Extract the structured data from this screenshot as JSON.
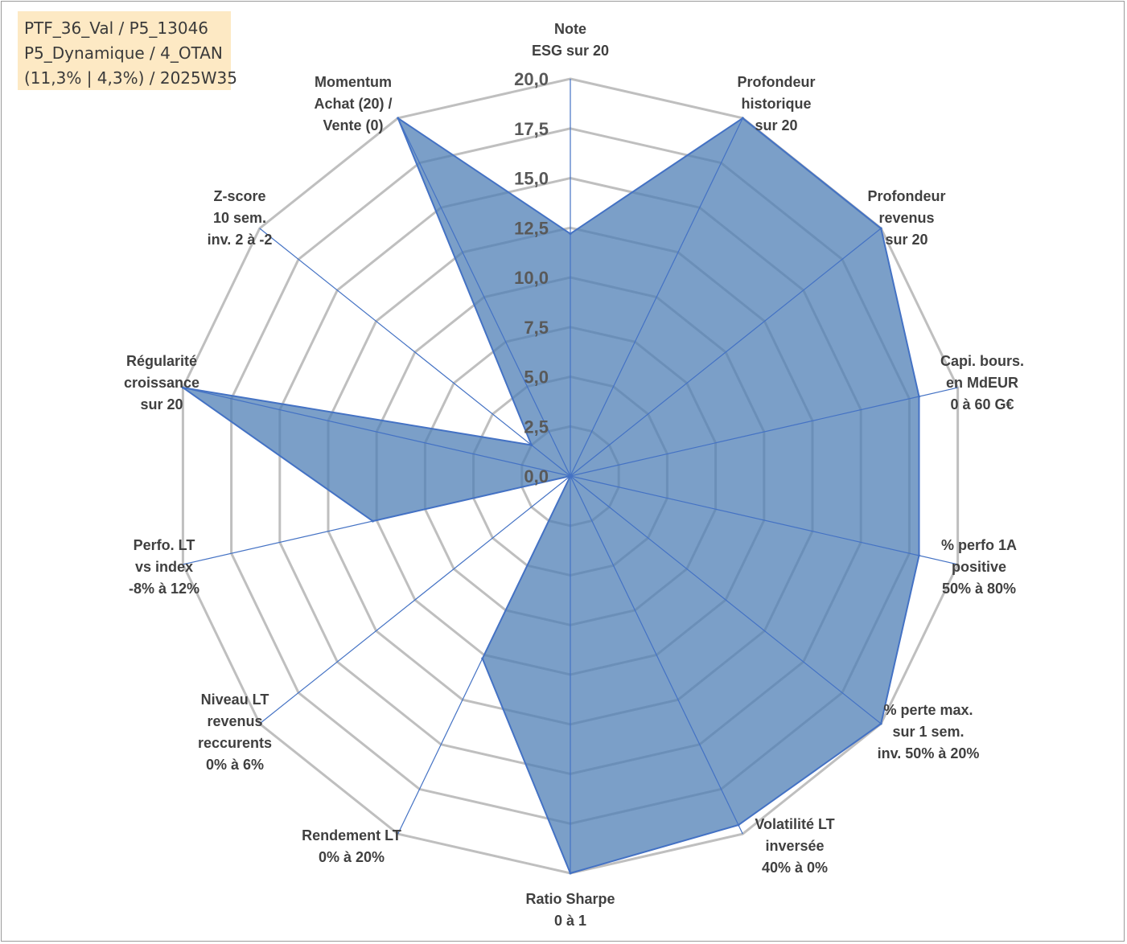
{
  "info_box": {
    "line1": "PTF_36_Val / P5_13046",
    "line2": "P5_Dynamique / 4_OTAN",
    "line3": "(11,3% | 4,3%) / 2025W35"
  },
  "chart_data": {
    "type": "radar",
    "rmin": 0,
    "rmax": 20,
    "ticks": [
      "0,0",
      "2,5",
      "5,0",
      "7,5",
      "10,0",
      "12,5",
      "15,0",
      "17,5",
      "20,0"
    ],
    "axes": [
      [
        "Note",
        "ESG sur 20"
      ],
      [
        "Profondeur",
        "historique",
        "sur 20"
      ],
      [
        "Profondeur",
        "revenus",
        "sur 20"
      ],
      [
        "Capi. bours.",
        "en MdEUR",
        "0 à 60 G€"
      ],
      [
        "% perfo 1A",
        "positive",
        "50% à 80%"
      ],
      [
        "% perte max.",
        "sur 1 sem.",
        "inv. 50% à 20%"
      ],
      [
        "Volatilité LT",
        "inversée",
        "40% à 0%"
      ],
      [
        "Ratio Sharpe",
        "0 à 1"
      ],
      [
        "Rendement LT",
        "0% à 20%"
      ],
      [
        "Niveau LT",
        "revenus",
        "reccurents",
        "0% à 6%"
      ],
      [
        "Perfo. LT",
        "vs index",
        "-8% à 12%"
      ],
      [
        "Régularité",
        "croissance",
        "sur 20"
      ],
      [
        "Z-score",
        "10 sem.",
        "inv. 2 à -2"
      ],
      [
        "Momentum",
        "Achat (20) /",
        "Vente (0)"
      ]
    ],
    "series": [
      {
        "values": [
          12.2,
          20,
          20,
          18,
          18,
          20,
          19.5,
          20,
          10.2,
          0,
          10.2,
          20,
          2.5,
          20
        ],
        "color": "#4f7fb5"
      }
    ],
    "grid": true,
    "legend": "none"
  }
}
